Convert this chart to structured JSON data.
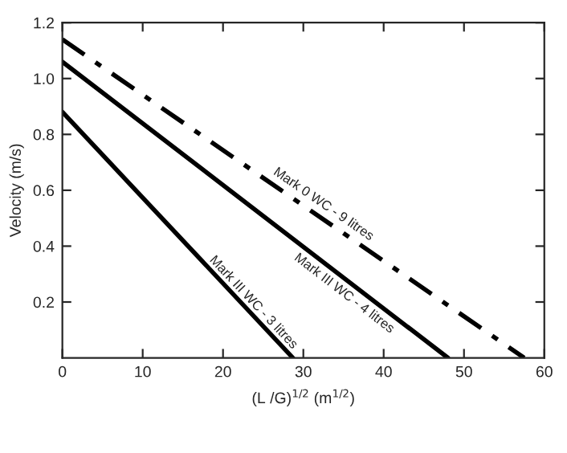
{
  "chart_data": {
    "type": "line",
    "xlabel": "(L /G)$^{1/2}$ (m$^{1/2}$)",
    "ylabel": "Velocity (m/s)",
    "series": [
      {
        "name": "Mark III WC - 3 litres",
        "color": "#000000",
        "line_style": "solid",
        "x": [
          0,
          28.7
        ],
        "values": [
          0.88,
          0
        ]
      },
      {
        "name": "Mark III WC - 4 litres",
        "color": "#000000",
        "line_style": "solid",
        "x": [
          0,
          48
        ],
        "values": [
          1.06,
          0
        ]
      },
      {
        "name": "Mark 0 WC - 9 litres",
        "color": "#000000",
        "line_style": "dashed",
        "x": [
          0,
          57.5
        ],
        "values": [
          1.14,
          0
        ]
      }
    ],
    "xlim": [
      0,
      60
    ],
    "xticks": [
      0,
      10,
      20,
      30,
      40,
      50,
      60
    ],
    "ylim": [
      0,
      1.2
    ],
    "yticks": [
      0.2,
      0.4,
      0.6,
      0.8,
      {
        "value": 1.0,
        "label": "1.0"
      },
      1.2
    ],
    "grid": false,
    "legend": false,
    "marker": "none"
  }
}
